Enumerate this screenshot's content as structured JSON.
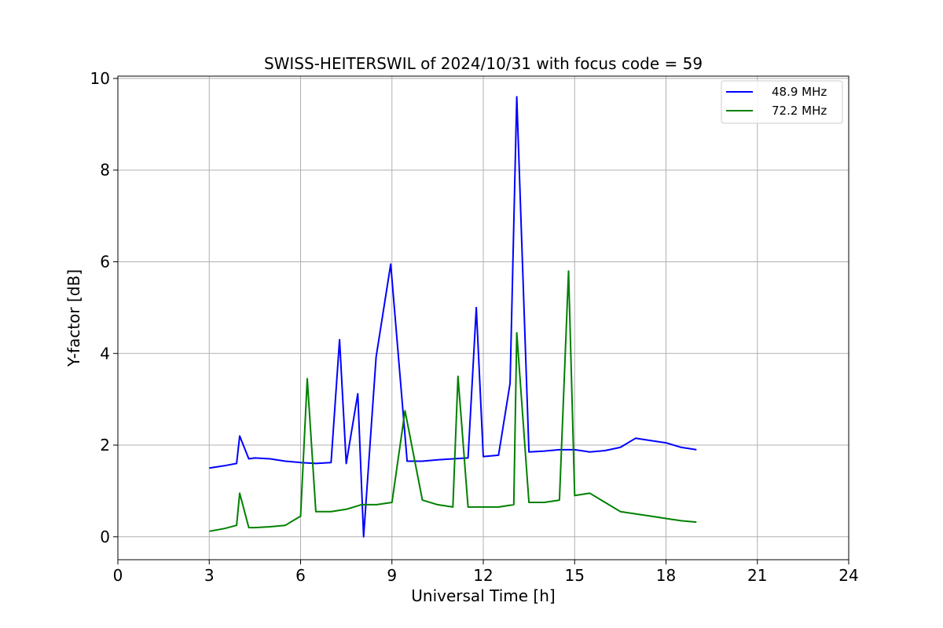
{
  "chart_data": {
    "type": "line",
    "title": "SWISS-HEITERSWIL of 2024/10/31 with focus code = 59",
    "xlabel": "Universal Time [h]",
    "ylabel": "Y-factor [dB]",
    "xlim": [
      0,
      24
    ],
    "ylim": [
      -0.5,
      10.05
    ],
    "xticks": [
      0,
      3,
      6,
      9,
      12,
      15,
      18,
      21,
      24
    ],
    "yticks": [
      0,
      2,
      4,
      6,
      8,
      10
    ],
    "grid": true,
    "legend_position": "top-right",
    "series": [
      {
        "name": "48.9 MHz",
        "color": "#0000ff",
        "x": [
          3.0,
          3.5,
          3.9,
          4.0,
          4.3,
          4.5,
          5.0,
          5.5,
          6.0,
          6.5,
          7.0,
          7.28,
          7.5,
          7.88,
          8.07,
          8.48,
          8.96,
          9.5,
          10.0,
          10.5,
          11.0,
          11.5,
          11.77,
          12.0,
          12.5,
          12.88,
          13.1,
          13.5,
          14.0,
          14.5,
          15.0,
          15.5,
          16.0,
          16.5,
          17.0,
          17.5,
          18.0,
          18.5,
          19.0
        ],
        "y": [
          1.5,
          1.55,
          1.6,
          2.2,
          1.7,
          1.72,
          1.7,
          1.65,
          1.62,
          1.6,
          1.62,
          4.3,
          1.6,
          3.12,
          0.0,
          3.92,
          5.95,
          1.65,
          1.65,
          1.68,
          1.7,
          1.72,
          5.0,
          1.75,
          1.78,
          3.35,
          9.6,
          1.85,
          1.87,
          1.9,
          1.9,
          1.85,
          1.88,
          1.95,
          2.15,
          2.1,
          2.05,
          1.95,
          1.9
        ]
      },
      {
        "name": "72.2 MHz",
        "color": "#008000",
        "x": [
          3.0,
          3.5,
          3.9,
          4.0,
          4.3,
          4.5,
          5.0,
          5.5,
          6.0,
          6.22,
          6.5,
          7.0,
          7.5,
          8.0,
          8.5,
          9.0,
          9.43,
          10.0,
          10.5,
          11.0,
          11.17,
          11.5,
          12.0,
          12.5,
          13.0,
          13.1,
          13.5,
          14.0,
          14.5,
          14.8,
          15.0,
          15.5,
          16.0,
          16.5,
          17.0,
          17.5,
          18.0,
          18.5,
          19.0
        ],
        "y": [
          0.12,
          0.18,
          0.25,
          0.95,
          0.2,
          0.2,
          0.22,
          0.25,
          0.45,
          3.45,
          0.55,
          0.55,
          0.6,
          0.7,
          0.7,
          0.75,
          2.75,
          0.8,
          0.7,
          0.65,
          3.5,
          0.65,
          0.65,
          0.65,
          0.7,
          4.45,
          0.75,
          0.75,
          0.8,
          5.8,
          0.9,
          0.95,
          0.75,
          0.55,
          0.5,
          0.45,
          0.4,
          0.35,
          0.32
        ]
      }
    ]
  }
}
